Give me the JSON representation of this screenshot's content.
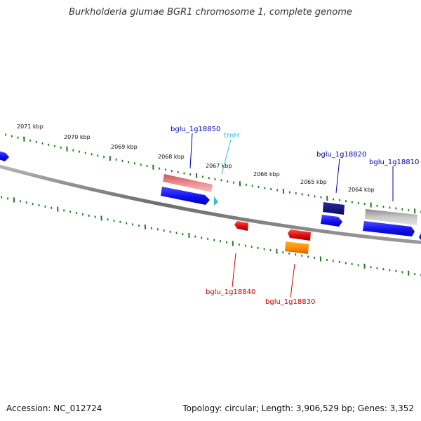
{
  "title": "Burkholderia glumae BGR1 chromosome 1, complete genome",
  "footer": {
    "accession_label": "Accession:",
    "accession": "NC_012724",
    "summary": "Topology: circular; Length: 3,906,529 bp; Genes: 3,352"
  },
  "colors": {
    "backbone": "#8a8a8a",
    "tick": "#1f7a1f",
    "forward_gene": "#1010ee",
    "reverse_gene": "#e01010",
    "forward_label": "#0000aa",
    "reverse_label": "#cc0000",
    "trna": "#33bbdd"
  },
  "kbp_labels": [
    "2071 kbp",
    "2070 kbp",
    "2069 kbp",
    "2068 kbp",
    "2067 kbp",
    "2066 kbp",
    "2065 kbp",
    "2064 kbp"
  ],
  "gene_labels": {
    "bglu_1g18850": "bglu_1g18850",
    "trnH": "trnH",
    "bglu_1g18820": "bglu_1g18820",
    "bglu_1g18810": "bglu_1g18810",
    "bglu_1g18840": "bglu_1g18840",
    "bglu_1g18830": "bglu_1g18830"
  }
}
